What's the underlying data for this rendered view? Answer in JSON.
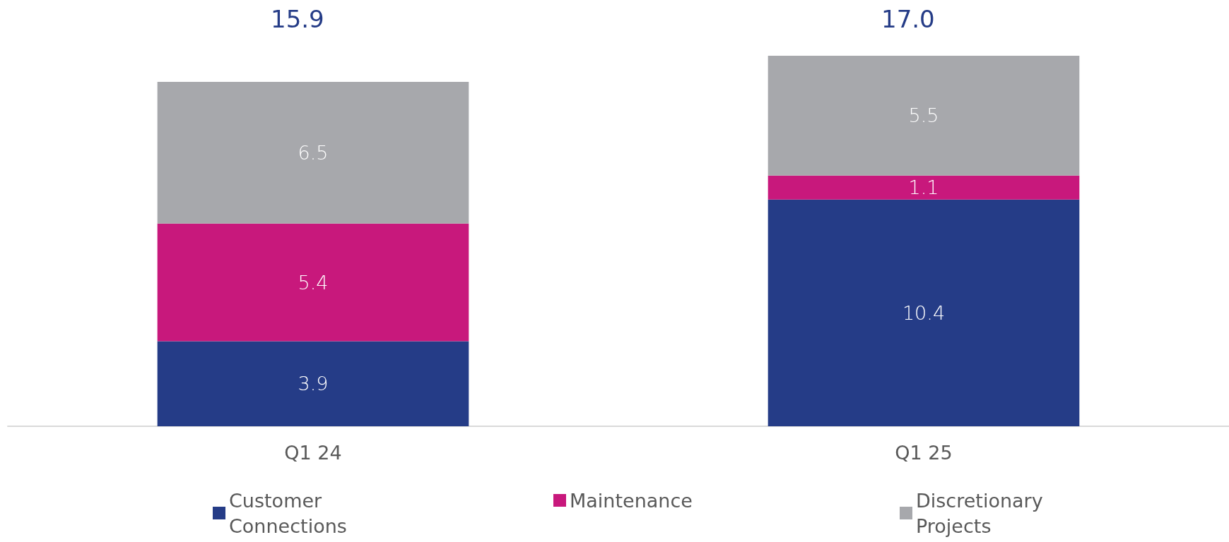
{
  "chart_data": {
    "type": "bar",
    "stacked": true,
    "categories": [
      "Q1 24",
      "Q1 25"
    ],
    "series": [
      {
        "name": "Customer Connections",
        "color": "#253c87",
        "values": [
          3.9,
          10.4
        ]
      },
      {
        "name": "Maintenance",
        "color": "#c8187c",
        "values": [
          5.4,
          1.1
        ]
      },
      {
        "name": "Discretionary Projects",
        "color": "#a7a8ac",
        "values": [
          6.5,
          5.5
        ]
      }
    ],
    "data_labels": true,
    "totals": [
      "15.9",
      "17.0"
    ],
    "legend": "bottom"
  }
}
